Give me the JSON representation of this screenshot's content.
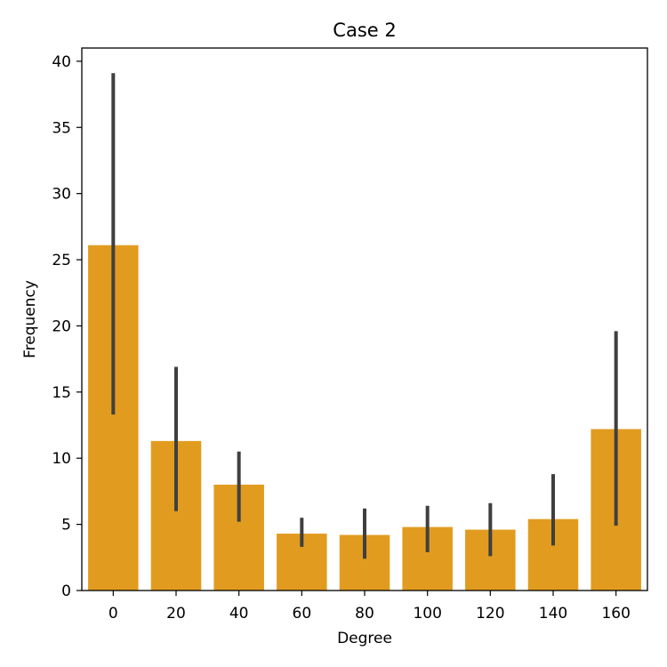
{
  "chart_data": {
    "type": "bar",
    "title": "Case 2",
    "xlabel": "Degree",
    "ylabel": "Frequency",
    "categories": [
      "0",
      "20",
      "40",
      "60",
      "80",
      "100",
      "120",
      "140",
      "160"
    ],
    "values": [
      26.1,
      11.3,
      8.0,
      4.3,
      4.2,
      4.8,
      4.6,
      5.4,
      12.2
    ],
    "error_bars": [
      [
        13.3,
        39.1
      ],
      [
        6.0,
        16.9
      ],
      [
        5.2,
        10.5
      ],
      [
        3.3,
        5.5
      ],
      [
        2.4,
        6.2
      ],
      [
        2.9,
        6.4
      ],
      [
        2.6,
        6.6
      ],
      [
        3.4,
        8.8
      ],
      [
        4.9,
        19.6
      ]
    ],
    "ylim": [
      0,
      41
    ],
    "yticks": [
      0,
      5,
      10,
      15,
      20,
      25,
      30,
      35,
      40
    ],
    "grid": false,
    "bar_color": "#e19c1f",
    "error_color": "#3f3f3f"
  }
}
